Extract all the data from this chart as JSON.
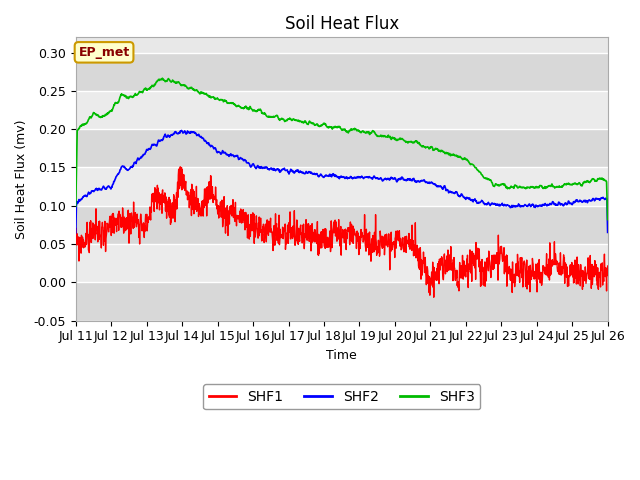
{
  "title": "Soil Heat Flux",
  "xlabel": "Time",
  "ylabel": "Soil Heat Flux (mv)",
  "ylim": [
    -0.05,
    0.32
  ],
  "xlim": [
    0,
    15
  ],
  "annotation": "EP_met",
  "background_color": "#ffffff",
  "plot_bg_color": "#e8e8e8",
  "series": {
    "SHF1": {
      "color": "#ff0000",
      "label": "SHF1"
    },
    "SHF2": {
      "color": "#0000ff",
      "label": "SHF2"
    },
    "SHF3": {
      "color": "#00bb00",
      "label": "SHF3"
    }
  },
  "xtick_labels": [
    "Jul 11",
    "Jul 12",
    "Jul 13",
    "Jul 14",
    "Jul 15",
    "Jul 16",
    "Jul 17",
    "Jul 18",
    "Jul 19",
    "Jul 20",
    "Jul 21",
    "Jul 22",
    "Jul 23",
    "Jul 24",
    "Jul 25",
    "Jul 26"
  ],
  "ytick_labels": [
    "-0.05",
    "0.00",
    "0.05",
    "0.10",
    "0.15",
    "0.20",
    "0.25",
    "0.30"
  ],
  "ytick_values": [
    -0.05,
    0.0,
    0.05,
    0.1,
    0.15,
    0.2,
    0.25,
    0.3
  ],
  "grid_color": "#ffffff",
  "title_fontsize": 12,
  "tick_fontsize": 9,
  "label_fontsize": 9,
  "band_colors": [
    "#d8d8d8",
    "#ebebeb"
  ],
  "ep_box_face": "#ffffcc",
  "ep_box_edge": "#cc9900",
  "ep_text_color": "#880000"
}
